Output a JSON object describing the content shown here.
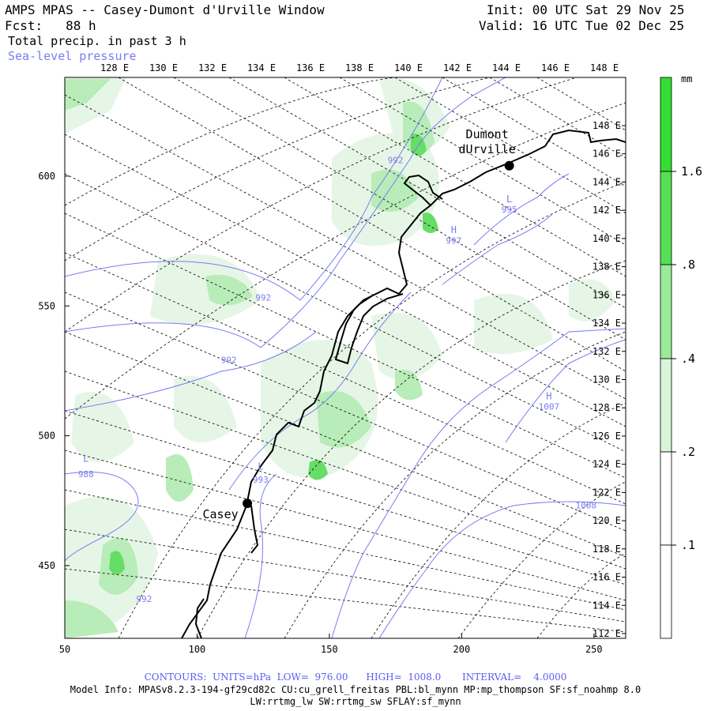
{
  "header": {
    "title": "AMPS MPAS -- Casey-Dumont d'Urville Window",
    "init": "Init: 00 UTC Sat 29 Nov 25",
    "forecast": "Fcst:   88 h",
    "valid": "Valid: 16 UTC Tue 02 Dec 25",
    "field": "Total precip. in past 3 h",
    "overlay": "Sea-level pressure"
  },
  "map": {
    "top_lon_labels": [
      "128 E",
      "130 E",
      "132 E",
      "134 E",
      "136 E",
      "138 E",
      "140 E",
      "142 E",
      "144 E",
      "146 E",
      "148 E"
    ],
    "right_lon_labels": [
      "148 E",
      "146 E",
      "144 E",
      "142 E",
      "140 E",
      "138 E",
      "136 E",
      "134 E",
      "132 E",
      "130 E",
      "128 E",
      "126 E",
      "124 E",
      "122 E",
      "120 E",
      "118 E",
      "116 E",
      "114 E",
      "112 E"
    ],
    "x_axis": {
      "ticks": [
        "50",
        "100",
        "150",
        "200",
        "250"
      ],
      "range": [
        50,
        262
      ]
    },
    "y_axis": {
      "ticks": [
        "600",
        "550",
        "500",
        "450"
      ],
      "range": [
        422,
        638
      ]
    },
    "stations": [
      {
        "name_line1": "Dumont",
        "name_line2": "dUrville",
        "x": 218,
        "y": 604
      },
      {
        "name_line1": "Casey",
        "x": 119,
        "y": 474
      }
    ],
    "pressure_labels": [
      {
        "text": "992",
        "x": 125,
        "y": 552
      },
      {
        "text": "992",
        "x": 112,
        "y": 528
      },
      {
        "text": "992",
        "x": 175,
        "y": 605
      },
      {
        "text": "992",
        "x": 80,
        "y": 436
      },
      {
        "text": "993",
        "x": 124,
        "y": 482
      },
      {
        "text": "988",
        "x": 58,
        "y": 484
      },
      {
        "text": "995",
        "x": 218,
        "y": 586
      },
      {
        "text": "997",
        "x": 197,
        "y": 574
      },
      {
        "text": "1007",
        "x": 233,
        "y": 510
      },
      {
        "text": "1008",
        "x": 247,
        "y": 472
      }
    ],
    "pressure_markers": [
      {
        "text": "L",
        "x": 58,
        "y": 490
      },
      {
        "text": "L",
        "x": 124,
        "y": 487
      },
      {
        "text": "L",
        "x": 218,
        "y": 590
      },
      {
        "text": "H",
        "x": 197,
        "y": 578
      },
      {
        "text": "H",
        "x": 233,
        "y": 514
      }
    ],
    "colors": {
      "land_line": "#000000",
      "contour": "#7a7cf0",
      "precip_levels": [
        "#ffffff",
        "#e8f7e8",
        "#c3f0c3",
        "#88e888",
        "#55dd55",
        "#33dd33"
      ]
    }
  },
  "legend": {
    "unit": "mm",
    "labels": [
      "1.6",
      ".8",
      ".4",
      ".2",
      ".1"
    ],
    "colors": [
      "#33dd33",
      "#55e055",
      "#99ea99",
      "#d8f5d8",
      "#ffffff"
    ]
  },
  "footer": {
    "contours": "CONTOURS:  UNITS=hPa  LOW=  976.00      HIGH=  1008.0       INTERVAL=    4.0000",
    "model_info": "Model Info: MPASv8.2.3-194-gf29cd82c CU:cu_grell_freitas PBL:bl_mynn MP:mp_thompson SF:sf_noahmp 8.0",
    "model_info2": "LW:rrtmg_lw SW:rrtmg_sw SFLAY:sf_mynn"
  }
}
